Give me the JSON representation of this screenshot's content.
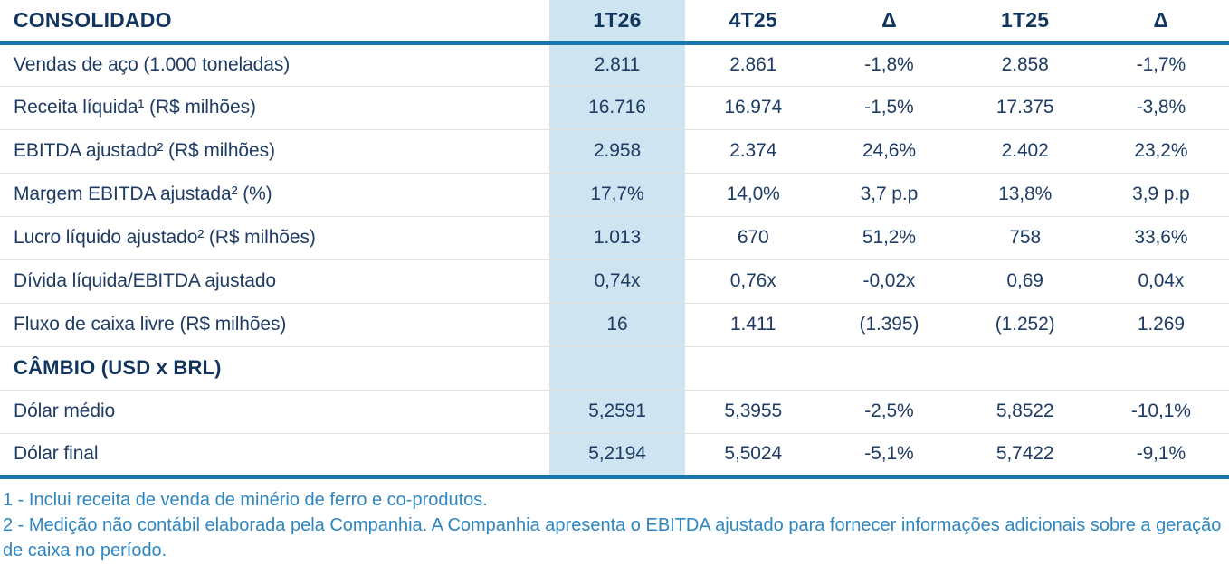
{
  "colors": {
    "navy": "#11355e",
    "text_navy": "#1e3c64",
    "accent_blue": "#1779ae",
    "highlight_bg": "#cfe4f1",
    "separator": "#e2e2e2",
    "footnote_blue": "#2e86c1",
    "page_bg": "#ffffff"
  },
  "chart_data": {
    "type": "table",
    "title": "CONSOLIDADO",
    "highlight_column": "1T26",
    "header": {
      "label": "CONSOLIDADO",
      "cols": [
        "1T26",
        "4T25",
        "Δ",
        "1T25",
        "Δ"
      ]
    },
    "rows": [
      {
        "label": "Vendas de aço (1.000 toneladas)",
        "section": false,
        "values": [
          "2.811",
          "2.861",
          "-1,8%",
          "2.858",
          "-1,7%"
        ]
      },
      {
        "label": "Receita líquida¹ (R$ milhões)",
        "section": false,
        "values": [
          "16.716",
          "16.974",
          "-1,5%",
          "17.375",
          "-3,8%"
        ]
      },
      {
        "label": "EBITDA ajustado² (R$ milhões)",
        "section": false,
        "values": [
          "2.958",
          "2.374",
          "24,6%",
          "2.402",
          "23,2%"
        ]
      },
      {
        "label": "Margem EBITDA ajustada² (%)",
        "section": false,
        "values": [
          "17,7%",
          "14,0%",
          "3,7 p.p",
          "13,8%",
          "3,9 p.p"
        ]
      },
      {
        "label": "Lucro líquido ajustado² (R$ milhões)",
        "section": false,
        "values": [
          "1.013",
          "670",
          "51,2%",
          "758",
          "33,6%"
        ]
      },
      {
        "label": "Dívida líquida/EBITDA ajustado",
        "section": false,
        "values": [
          "0,74x",
          "0,76x",
          "-0,02x",
          "0,69",
          "0,04x"
        ]
      },
      {
        "label": "Fluxo de caixa livre (R$ milhões)",
        "section": false,
        "values": [
          "16",
          "1.411",
          "(1.395)",
          "(1.252)",
          "1.269"
        ]
      },
      {
        "label": "CÂMBIO (USD x BRL)",
        "section": true,
        "values": [
          "",
          "",
          "",
          "",
          ""
        ]
      },
      {
        "label": "Dólar médio",
        "section": false,
        "values": [
          "5,2591",
          "5,3955",
          "-2,5%",
          "5,8522",
          "-10,1%"
        ]
      },
      {
        "label": "Dólar final",
        "section": false,
        "values": [
          "5,2194",
          "5,5024",
          "-5,1%",
          "5,7422",
          "-9,1%"
        ]
      }
    ],
    "footnotes": [
      "1 - Inclui receita de venda de minério de ferro e co-produtos.",
      "2 - Medição não contábil elaborada pela Companhia. A Companhia apresenta o EBITDA ajustado para fornecer informações adicionais sobre a geração de caixa no período."
    ]
  }
}
